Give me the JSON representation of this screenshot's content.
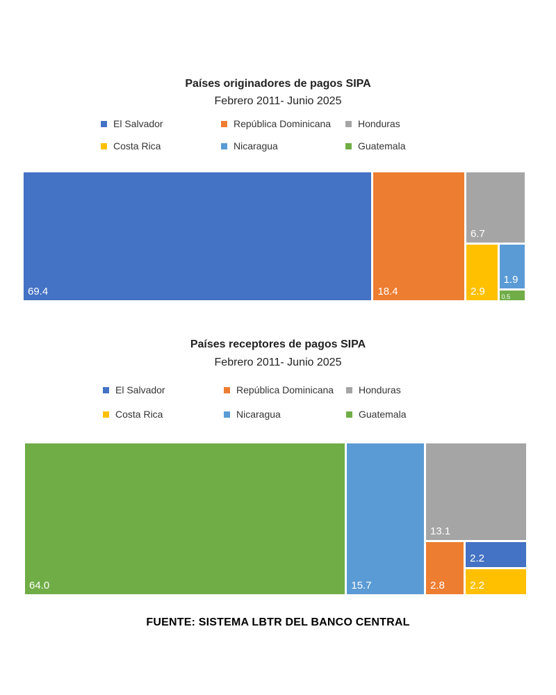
{
  "colors": {
    "El Salvador": "#4472C4",
    "República Dominicana": "#ED7D31",
    "Honduras": "#A5A5A5",
    "Costa Rica": "#FFC000",
    "Nicaragua": "#5B9BD5",
    "Guatemala": "#70AD47"
  },
  "chart_data": [
    {
      "type": "treemap",
      "title": "Países originadores de pagos SIPA",
      "subtitle": "Febrero 2011- Junio 2025",
      "legend": [
        "El Salvador",
        "República Dominicana",
        "Honduras",
        "Costa Rica",
        "Nicaragua",
        "Guatemala"
      ],
      "legend_position": "top",
      "items": [
        {
          "name": "El Salvador",
          "value": 69.4,
          "label": "69.4"
        },
        {
          "name": "República Dominicana",
          "value": 18.4,
          "label": "18.4"
        },
        {
          "name": "Honduras",
          "value": 6.7,
          "label": "6.7"
        },
        {
          "name": "Costa Rica",
          "value": 2.9,
          "label": "2.9"
        },
        {
          "name": "Nicaragua",
          "value": 1.9,
          "label": "1.9"
        },
        {
          "name": "Guatemala",
          "value": 0.5,
          "label": "0.5"
        }
      ]
    },
    {
      "type": "treemap",
      "title": "Países receptores de pagos SIPA",
      "subtitle": "Febrero 2011- Junio 2025",
      "legend": [
        "El Salvador",
        "República Dominicana",
        "Honduras",
        "Costa Rica",
        "Nicaragua",
        "Guatemala"
      ],
      "legend_position": "top",
      "items": [
        {
          "name": "Guatemala",
          "value": 64.0,
          "label": "64.0"
        },
        {
          "name": "Nicaragua",
          "value": 15.7,
          "label": "15.7"
        },
        {
          "name": "Honduras",
          "value": 13.1,
          "label": "13.1"
        },
        {
          "name": "República Dominicana",
          "value": 2.8,
          "label": "2.8"
        },
        {
          "name": "El Salvador",
          "value": 2.2,
          "label": "2.2"
        },
        {
          "name": "Costa Rica",
          "value": 2.2,
          "label": "2.2"
        }
      ]
    }
  ],
  "source": "FUENTE: SISTEMA LBTR DEL BANCO CENTRAL"
}
